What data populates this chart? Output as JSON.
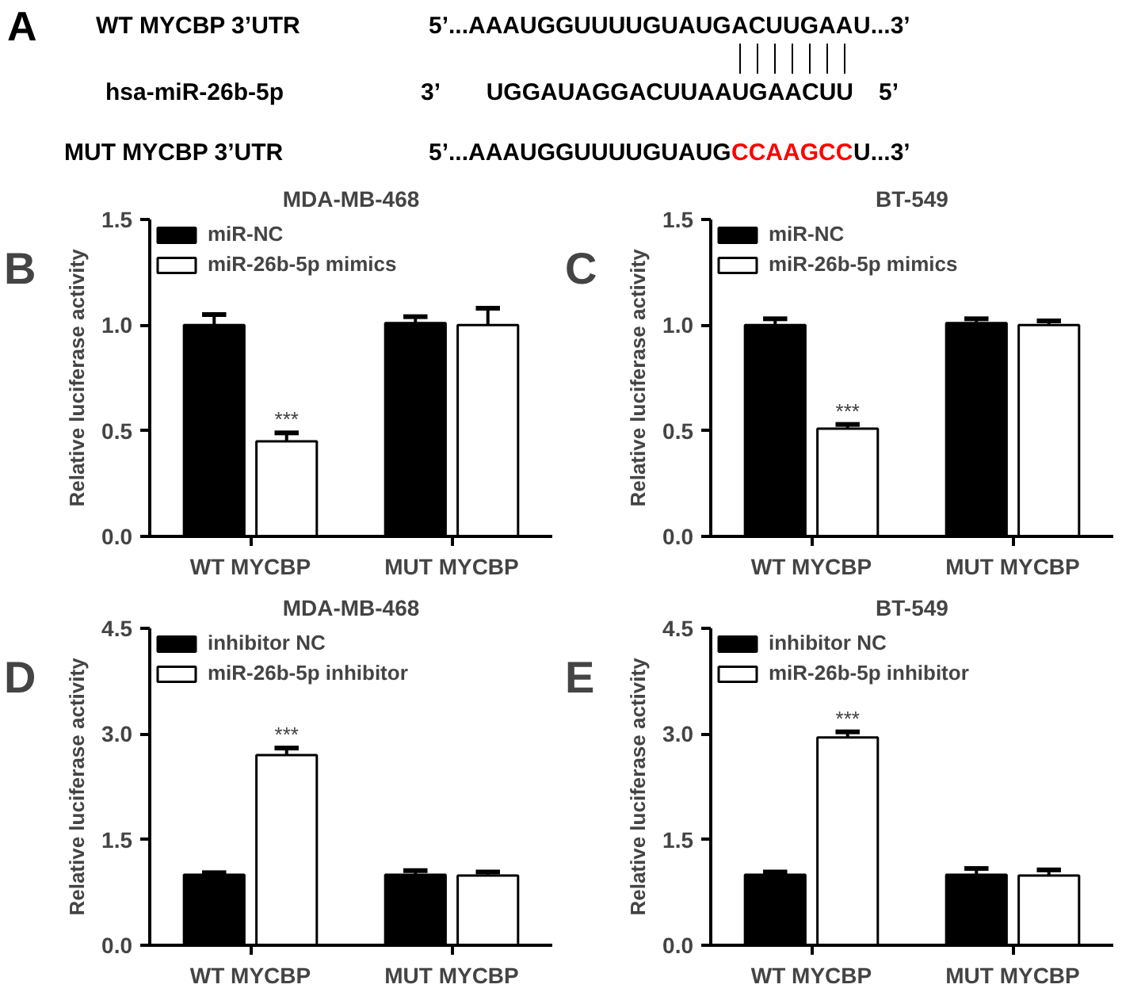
{
  "chart_data": [
    {
      "type": "other",
      "annotations": [
        "A",
        "WT MYCBP 3’UTR",
        "5’...AAAUGGUUUUGUAUG",
        "ACUUGAA",
        "U...3’",
        "hsa-miR-26b-5p",
        "3’",
        "UGGAUAGGACUUAAUGAACUU",
        "5’",
        "MUT MYCBP 3’UTR",
        "5’...AAAUGGUUUUGUAUG",
        "CCAAGCC",
        "U...3’"
      ],
      "colors": [
        "#000000",
        "#000000",
        "#000000",
        "#000000",
        "#000000",
        "#000000",
        "#000000",
        "#000000",
        "#000000",
        "#000000",
        "#000000",
        "#ff0000",
        "#000000"
      ]
    },
    {
      "type": "bar",
      "title": "MDA-MB-468",
      "ylabel": "Relative luciferase activity",
      "categories": [
        "WT MYCBP",
        "MUT MYCBP"
      ],
      "ylim": [
        0,
        1.5
      ],
      "yticks": [
        {
          "value": 0,
          "label": "0.0"
        },
        {
          "value": 0.5,
          "label": "0.5"
        },
        {
          "value": 1,
          "label": "1.0"
        },
        {
          "value": 1.5,
          "label": "1.5"
        }
      ],
      "legend": "top left",
      "grid": false,
      "series": [
        {
          "name": "miR-NC",
          "color": "#000000",
          "values": [
            1.0,
            1.01
          ],
          "errors": [
            0.05,
            0.03
          ]
        },
        {
          "name": "miR-26b-5p mimics",
          "color": "#ffffff",
          "values": [
            0.45,
            1.0
          ],
          "errors": [
            0.04,
            0.08
          ]
        }
      ],
      "annotations": [
        "B",
        "***"
      ]
    },
    {
      "type": "bar",
      "title": "BT-549",
      "ylabel": "Relative luciferase activity",
      "categories": [
        "WT MYCBP",
        "MUT MYCBP"
      ],
      "ylim": [
        0,
        1.5
      ],
      "yticks": [
        {
          "value": 0,
          "label": "0.0"
        },
        {
          "value": 0.5,
          "label": "0.5"
        },
        {
          "value": 1,
          "label": "1.0"
        },
        {
          "value": 1.5,
          "label": "1.5"
        }
      ],
      "legend": "top left",
      "grid": false,
      "series": [
        {
          "name": "miR-NC",
          "color": "#000000",
          "values": [
            1.0,
            1.01
          ],
          "errors": [
            0.03,
            0.02
          ]
        },
        {
          "name": "miR-26b-5p mimics",
          "color": "#ffffff",
          "values": [
            0.51,
            1.0
          ],
          "errors": [
            0.02,
            0.02
          ]
        }
      ],
      "annotations": [
        "C",
        "***"
      ]
    },
    {
      "type": "bar",
      "title": "MDA-MB-468",
      "ylabel": "Relative luciferase activity",
      "categories": [
        "WT MYCBP",
        "MUT MYCBP"
      ],
      "ylim": [
        0,
        4.5
      ],
      "yticks": [
        {
          "value": 0,
          "label": "0.0"
        },
        {
          "value": 1.5,
          "label": "1.5"
        },
        {
          "value": 3,
          "label": "3.0"
        },
        {
          "value": 4.5,
          "label": "4.5"
        }
      ],
      "legend": "top left",
      "grid": false,
      "series": [
        {
          "name": "inhibitor NC",
          "color": "#000000",
          "values": [
            1.0,
            1.0
          ],
          "errors": [
            0.03,
            0.06
          ]
        },
        {
          "name": "miR-26b-5p inhibitor",
          "color": "#ffffff",
          "values": [
            2.7,
            0.99
          ],
          "errors": [
            0.1,
            0.05
          ]
        }
      ],
      "annotations": [
        "D",
        "***"
      ]
    },
    {
      "type": "bar",
      "title": "BT-549",
      "ylabel": "Relative luciferase activity",
      "categories": [
        "WT MYCBP",
        "MUT MYCBP"
      ],
      "ylim": [
        0,
        4.5
      ],
      "yticks": [
        {
          "value": 0,
          "label": "0.0"
        },
        {
          "value": 1.5,
          "label": "1.5"
        },
        {
          "value": 3,
          "label": "3.0"
        },
        {
          "value": 4.5,
          "label": "4.5"
        }
      ],
      "legend": "top left",
      "grid": false,
      "series": [
        {
          "name": "inhibitor NC",
          "color": "#000000",
          "values": [
            1.0,
            1.0
          ],
          "errors": [
            0.04,
            0.09
          ]
        },
        {
          "name": "miR-26b-5p inhibitor",
          "color": "#ffffff",
          "values": [
            2.95,
            0.99
          ],
          "errors": [
            0.08,
            0.08
          ]
        }
      ],
      "annotations": [
        "E",
        "***"
      ]
    }
  ]
}
